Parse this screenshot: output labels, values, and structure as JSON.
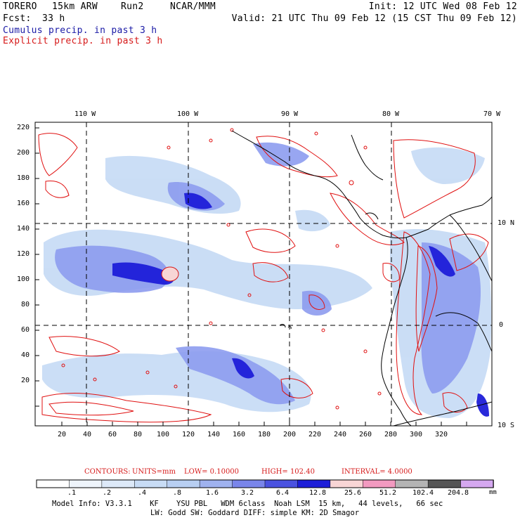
{
  "header": {
    "model": "TORERO",
    "resolution": "15km ARW",
    "run": "Run2",
    "org": "NCAR/MMM",
    "init": "Init: 12 UTC Wed 08 Feb 12",
    "fcst_label": "Fcst:",
    "fcst_value": "33 h",
    "valid": "Valid: 21 UTC Thu 09 Feb 12 (15 CST Thu 09 Feb 12)"
  },
  "legend": {
    "cumulus": "Cumulus precip. in past 3 h",
    "explicit": "Explicit precip. in past 3 h"
  },
  "map": {
    "top_lon_labels": [
      "110 W",
      "100 W",
      "90 W",
      "80 W",
      "70 W"
    ],
    "right_lat_labels": [
      "10 N",
      "0",
      "10 S"
    ],
    "y_ticks": [
      "220",
      "200",
      "180",
      "160",
      "140",
      "120",
      "100",
      "80",
      "60",
      "40",
      "20"
    ],
    "x_ticks": [
      "20",
      "40",
      "60",
      "80",
      "100",
      "120",
      "140",
      "160",
      "180",
      "200",
      "220",
      "240",
      "260",
      "280",
      "300",
      "320"
    ]
  },
  "contours": {
    "label": "CONTOURS:",
    "units": "UNITS=mm",
    "low": "LOW= 0.10000",
    "high": "HIGH= 102.40",
    "interval": "INTERVAL= 4.0000"
  },
  "colorbar": {
    "labels": [
      ".1",
      ".2",
      ".4",
      ".8",
      "1.6",
      "3.2",
      "6.4",
      "12.8",
      "25.6",
      "51.2",
      "102.4",
      "204.8"
    ],
    "unit": "mm",
    "colors": [
      "#ffffff",
      "#eef4fb",
      "#dde9f8",
      "#c8dcf5",
      "#b8cff2",
      "#9fb2ef",
      "#7985ea",
      "#4a52e0",
      "#1d1ed8",
      "#f8d5d5",
      "#f29ac0",
      "#b4b4b4",
      "#555555",
      "#d5a8f0"
    ]
  },
  "footer": {
    "line1": "Model Info: V3.3.1    KF    YSU PBL   WDM 6class  Noah LSM  15 km,   44 levels,   66 sec",
    "line2": "LW: Godd SW: Goddard DIFF: simple KM: 2D Smagor"
  }
}
